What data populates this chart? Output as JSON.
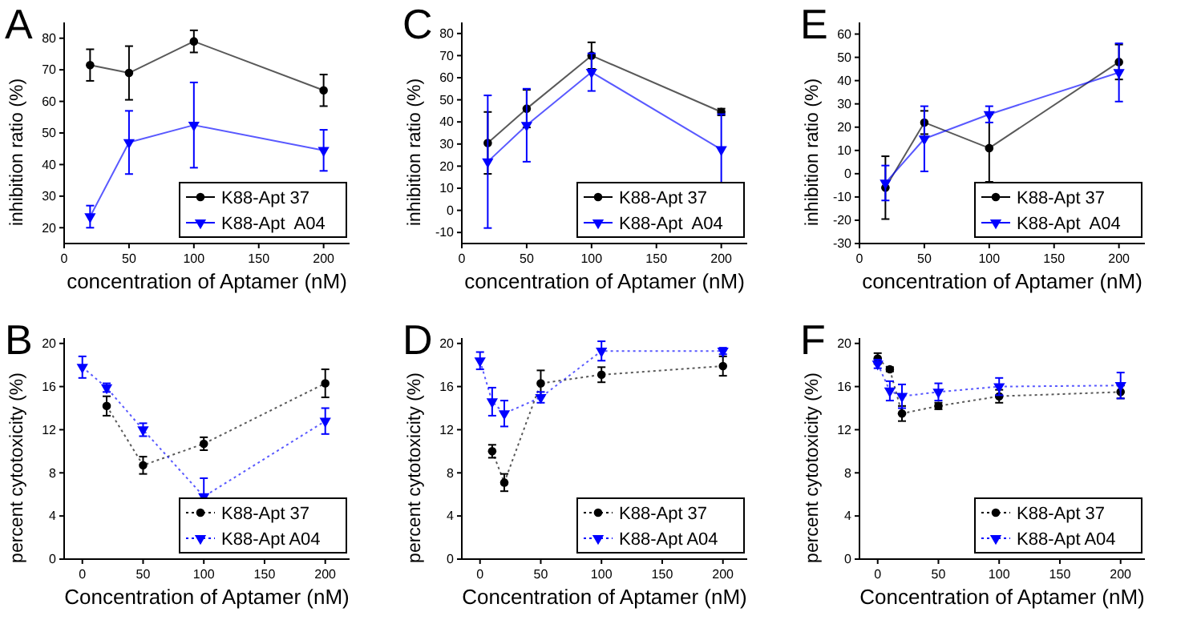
{
  "chart_data": [
    {
      "type": "line",
      "title": "A",
      "xlabel": "concentration of Aptamer (nM)",
      "ylabel": "inhibition ratio (%)",
      "x": [
        20,
        50,
        100,
        200
      ],
      "xlim": [
        0,
        220
      ],
      "xticks": [
        0,
        50,
        100,
        150,
        200
      ],
      "ylim": [
        15,
        85
      ],
      "yticks": [
        20,
        30,
        40,
        50,
        60,
        70,
        80
      ],
      "grid": false,
      "legend": "bottom right",
      "line_style": "solid",
      "series": [
        {
          "name": "K88-Apt 37",
          "color": "#000000",
          "marker": "circle",
          "values": [
            71.5,
            69,
            79,
            63.5
          ],
          "errors": [
            5,
            8.5,
            3.5,
            5
          ]
        },
        {
          "name": "K88-Apt  A04",
          "color": "#0000ff",
          "marker": "triangle",
          "values": [
            23.5,
            47,
            52.5,
            44.5
          ],
          "errors": [
            3.5,
            10,
            13.5,
            6.5
          ]
        }
      ]
    },
    {
      "type": "line",
      "title": "C",
      "xlabel": "concentration of Aptamer (nM)",
      "ylabel": "inhibition ratio (%)",
      "x": [
        20,
        50,
        100,
        200
      ],
      "xlim": [
        0,
        220
      ],
      "xticks": [
        0,
        50,
        100,
        150,
        200
      ],
      "ylim": [
        -15,
        85
      ],
      "yticks": [
        -10,
        0,
        10,
        20,
        30,
        40,
        50,
        60,
        70,
        80
      ],
      "grid": false,
      "legend": "bottom right",
      "line_style": "solid",
      "series": [
        {
          "name": "K88-Apt 37",
          "color": "#000000",
          "marker": "circle",
          "values": [
            30.5,
            46,
            70,
            44.5
          ],
          "errors": [
            14,
            8.5,
            6,
            1.5
          ]
        },
        {
          "name": "K88-Apt  A04",
          "color": "#0000ff",
          "marker": "triangle",
          "values": [
            22,
            38.5,
            62.5,
            27.5
          ],
          "errors": [
            30,
            16.5,
            8.5,
            16
          ]
        }
      ]
    },
    {
      "type": "line",
      "title": "E",
      "xlabel": "concentration of Aptamer (nM)",
      "ylabel": "inhibition ratio (%)",
      "x": [
        20,
        50,
        100,
        200
      ],
      "xlim": [
        0,
        220
      ],
      "xticks": [
        0,
        50,
        100,
        150,
        200
      ],
      "ylim": [
        -30,
        65
      ],
      "yticks": [
        -30,
        -20,
        -10,
        0,
        10,
        20,
        30,
        40,
        50,
        60
      ],
      "grid": false,
      "legend": "bottom right",
      "line_style": "solid",
      "series": [
        {
          "name": "K88-Apt 37",
          "color": "#000000",
          "marker": "circle",
          "values": [
            -6,
            22,
            11,
            48
          ],
          "errors": [
            13.5,
            5,
            14.5,
            7.5
          ]
        },
        {
          "name": "K88-Apt  A04",
          "color": "#0000ff",
          "marker": "triangle",
          "values": [
            -4,
            15,
            25.5,
            43.5
          ],
          "errors": [
            7.5,
            14,
            3.5,
            12.5
          ]
        }
      ]
    },
    {
      "type": "line",
      "title": "B",
      "xlabel": "Concentration of Aptamer (nM)",
      "ylabel": "percent cytotoxicity (%)",
      "x": [
        0,
        20,
        50,
        100,
        200
      ],
      "xlim": [
        -15,
        220
      ],
      "xticks": [
        0,
        50,
        100,
        150,
        200
      ],
      "ylim": [
        0,
        20.5
      ],
      "yticks": [
        0,
        4,
        8,
        12,
        16,
        20
      ],
      "grid": false,
      "legend": "bottom right",
      "line_style": "dotted",
      "series": [
        {
          "name": "K88-Apt 37",
          "color": "#000000",
          "marker": "circle",
          "values": [
            null,
            14.2,
            8.7,
            10.7,
            16.3
          ],
          "errors": [
            null,
            0.9,
            0.8,
            0.6,
            1.3
          ]
        },
        {
          "name": "K88-Apt A04",
          "color": "#0000ff",
          "marker": "triangle",
          "values": [
            17.8,
            15.9,
            12,
            5.8,
            12.8
          ],
          "errors": [
            1,
            0.4,
            0.6,
            1.7,
            1.2
          ]
        }
      ]
    },
    {
      "type": "line",
      "title": "D",
      "xlabel": "Concentration of Aptamer (nM)",
      "ylabel": "percent cytotoxicity (%)",
      "x": [
        0,
        10,
        20,
        50,
        100,
        200
      ],
      "xlim": [
        -15,
        220
      ],
      "xticks": [
        0,
        50,
        100,
        150,
        200
      ],
      "ylim": [
        0,
        20.5
      ],
      "yticks": [
        0,
        4,
        8,
        12,
        16,
        20
      ],
      "grid": false,
      "legend": "bottom right",
      "line_style": "dotted",
      "series": [
        {
          "name": "K88-Apt 37",
          "color": "#000000",
          "marker": "circle",
          "values": [
            null,
            10,
            7.1,
            16.3,
            17.1,
            17.9
          ],
          "errors": [
            null,
            0.6,
            0.8,
            1.2,
            0.7,
            0.9
          ]
        },
        {
          "name": "K88-Apt A04",
          "color": "#0000ff",
          "marker": "triangle",
          "values": [
            18.4,
            14.6,
            13.5,
            15,
            19.3,
            19.3
          ],
          "errors": [
            0.8,
            1.3,
            1.2,
            0.5,
            0.9,
            0.3
          ]
        }
      ]
    },
    {
      "type": "line",
      "title": "F",
      "xlabel": "Concentration of Aptamer (nM)",
      "ylabel": "percent cytotoxicity (%)",
      "x": [
        0,
        10,
        20,
        50,
        100,
        200
      ],
      "xlim": [
        -15,
        220
      ],
      "xticks": [
        0,
        50,
        100,
        150,
        200
      ],
      "ylim": [
        0,
        20.5
      ],
      "yticks": [
        0,
        4,
        8,
        12,
        16,
        20
      ],
      "grid": false,
      "legend": "bottom right",
      "line_style": "dotted",
      "series": [
        {
          "name": "K88-Apt 37",
          "color": "#000000",
          "marker": "circle",
          "values": [
            18.6,
            17.6,
            13.5,
            14.2,
            15.1,
            15.5
          ],
          "errors": [
            0.5,
            0.2,
            0.7,
            0.3,
            0.6,
            0.6
          ]
        },
        {
          "name": "K88-Apt A04",
          "color": "#0000ff",
          "marker": "triangle",
          "values": [
            18.1,
            15.6,
            15.1,
            15.5,
            16,
            16.1
          ],
          "errors": [
            0.4,
            0.9,
            1.1,
            0.8,
            0.8,
            1.2
          ]
        }
      ]
    }
  ]
}
